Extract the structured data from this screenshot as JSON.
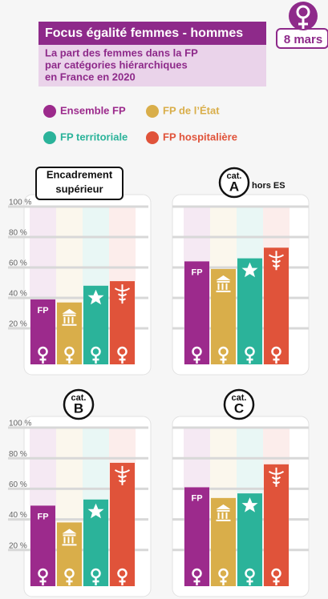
{
  "title": "Focus égalité femmes - hommes",
  "badge": "8 mars",
  "subtitle": [
    "La part des femmes dans la FP",
    "par catégories hiérarchiques",
    "en France en 2020"
  ],
  "bar_tag": "FP",
  "series": [
    {
      "name": "Ensemble FP",
      "color": "#9c2a8c"
    },
    {
      "name": "FP de l’État",
      "color": "#d9ae4a"
    },
    {
      "name": "FP territoriale",
      "color": "#2bb39a"
    },
    {
      "name": "FP hospitalière",
      "color": "#e0533a"
    }
  ],
  "chart_data": [
    {
      "type": "bar",
      "title": [
        "Encadrement",
        "supérieur"
      ],
      "values": [
        39,
        37,
        48,
        51
      ],
      "ylim": [
        0,
        100
      ],
      "yticks": [
        {
          "value": 20,
          "label": "20 %"
        },
        {
          "value": 40,
          "label": "40 %"
        },
        {
          "value": 60,
          "label": "60 %"
        },
        {
          "value": 80,
          "label": "80 %"
        },
        {
          "value": 100,
          "label": "100 %"
        }
      ],
      "grid": true
    },
    {
      "type": "bar",
      "label": "cat.",
      "letter": "A",
      "note": "hors ES",
      "values": [
        64,
        59,
        66,
        73
      ],
      "ylim": [
        0,
        100
      ],
      "yticks": [
        20,
        40,
        60,
        80,
        100
      ],
      "grid": true,
      "show_tick_labels": false
    },
    {
      "type": "bar",
      "label": "cat.",
      "letter": "B",
      "values": [
        49,
        38,
        53,
        77
      ],
      "ylim": [
        0,
        100
      ],
      "yticks": [
        {
          "value": 20,
          "label": "20 %"
        },
        {
          "value": 40,
          "label": "40 %"
        },
        {
          "value": 60,
          "label": "60 %"
        },
        {
          "value": 80,
          "label": "80 %"
        },
        {
          "value": 100,
          "label": "100 %"
        }
      ],
      "grid": true
    },
    {
      "type": "bar",
      "label": "cat.",
      "letter": "C",
      "values": [
        61,
        54,
        57,
        76
      ],
      "ylim": [
        0,
        100
      ],
      "yticks": [
        20,
        40,
        60,
        80,
        100
      ],
      "grid": true,
      "show_tick_labels": false
    }
  ]
}
